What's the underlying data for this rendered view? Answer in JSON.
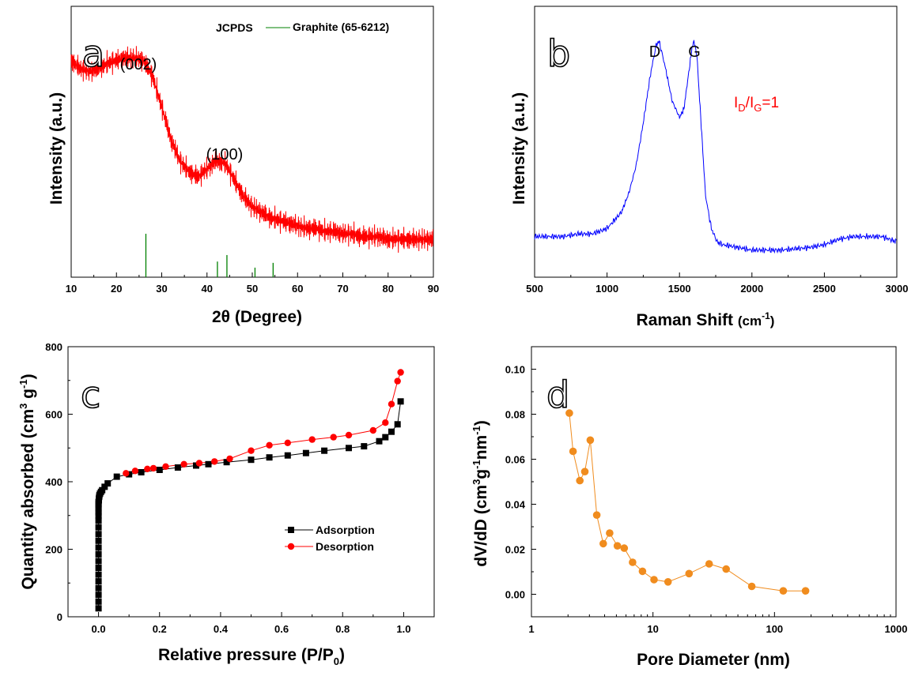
{
  "chart_data": [
    {
      "type": "line",
      "panel_label": "a",
      "xlabel": "2θ (Degree)",
      "ylabel": "Intensity (a.u.)",
      "xlim": [
        10,
        90
      ],
      "xticks": [
        "10",
        "20",
        "30",
        "40",
        "50",
        "60",
        "70",
        "80",
        "90"
      ],
      "yticks_shown": false,
      "series": [
        {
          "color": "#ff0000",
          "x": [
            10,
            12,
            14,
            16,
            18,
            20,
            22,
            24,
            26,
            28,
            30,
            32,
            34,
            36,
            38,
            40,
            42,
            44,
            46,
            48,
            50,
            52,
            54,
            56,
            58,
            60,
            62,
            64,
            66,
            68,
            70,
            72,
            74,
            76,
            78,
            80,
            82,
            84,
            86,
            88,
            90
          ],
          "y": [
            0.8,
            0.77,
            0.76,
            0.77,
            0.79,
            0.8,
            0.81,
            0.81,
            0.8,
            0.74,
            0.63,
            0.51,
            0.43,
            0.39,
            0.37,
            0.4,
            0.43,
            0.42,
            0.36,
            0.3,
            0.26,
            0.24,
            0.22,
            0.21,
            0.2,
            0.19,
            0.18,
            0.18,
            0.17,
            0.17,
            0.16,
            0.16,
            0.15,
            0.15,
            0.15,
            0.14,
            0.14,
            0.14,
            0.14,
            0.14,
            0.14
          ]
        }
      ],
      "reference": {
        "legend_prefix": "JCPDS",
        "name": "Graphite (65-6212)",
        "color": "#008000",
        "lines": [
          {
            "x": 26.5,
            "h": 1.0
          },
          {
            "x": 42.3,
            "h": 0.36
          },
          {
            "x": 44.4,
            "h": 0.51
          },
          {
            "x": 50.6,
            "h": 0.22
          },
          {
            "x": 54.6,
            "h": 0.33
          }
        ]
      },
      "annotations": [
        {
          "text": "(002)",
          "x": 25.5,
          "y": 0.96
        },
        {
          "text": "(100)",
          "x": 43,
          "y": 0.55
        }
      ]
    },
    {
      "type": "line",
      "panel_label": "b",
      "xlabel": "Raman Shift (cm-1)",
      "xlabel_main": "Raman Shift ",
      "xlabel_unit": "(cm",
      "xlabel_sup": "-1",
      "xlabel_close": ")",
      "ylabel": "Intensity (a.u.)",
      "xlim": [
        500,
        3000
      ],
      "xticks": [
        "500",
        "1000",
        "1500",
        "2000",
        "2500",
        "3000"
      ],
      "yticks_shown": false,
      "series": [
        {
          "color": "#0000ff",
          "x": [
            500,
            600,
            700,
            800,
            900,
            1000,
            1100,
            1150,
            1200,
            1250,
            1300,
            1340,
            1360,
            1400,
            1450,
            1500,
            1530,
            1560,
            1590,
            1600,
            1620,
            1650,
            1680,
            1720,
            1760,
            1800,
            1900,
            2000,
            2200,
            2400,
            2500,
            2600,
            2700,
            2800,
            2900,
            3000
          ],
          "y": [
            0.15,
            0.15,
            0.15,
            0.16,
            0.16,
            0.18,
            0.24,
            0.31,
            0.41,
            0.57,
            0.75,
            0.86,
            0.87,
            0.78,
            0.65,
            0.59,
            0.62,
            0.74,
            0.86,
            0.87,
            0.82,
            0.56,
            0.3,
            0.18,
            0.13,
            0.12,
            0.11,
            0.1,
            0.1,
            0.11,
            0.12,
            0.14,
            0.15,
            0.15,
            0.15,
            0.13
          ]
        }
      ],
      "annotations": [
        {
          "text": "D",
          "x": 1340,
          "y": 0.95
        },
        {
          "text": "G",
          "x": 1600,
          "y": 0.95
        }
      ],
      "ratio_label": {
        "I": "I",
        "D": "D",
        "slash": "/",
        "G": "G",
        "value": "=1"
      }
    },
    {
      "type": "line",
      "panel_label": "c",
      "xlabel": "Relative pressure (P/P0)",
      "xlabel_main": "Relative pressure (P/P",
      "xlabel_sub": "0",
      "xlabel_close": ")",
      "ylabel": "Quantity absorbed (cm3 g-1)",
      "ylabel_main": "Quantity absorbed (cm",
      "ylabel_sup1": "3",
      "ylabel_mid": " g",
      "ylabel_sup2": "-1",
      "ylabel_close": ")",
      "xlim": [
        -0.1,
        1.1
      ],
      "ylim": [
        0,
        800
      ],
      "xticks": [
        "0.0",
        "0.2",
        "0.4",
        "0.6",
        "0.8",
        "1.0"
      ],
      "yticks": [
        "0",
        "200",
        "400",
        "600",
        "800"
      ],
      "series": [
        {
          "name": "Adsorption",
          "color": "#000000",
          "marker": "square",
          "x": [
            0.0,
            0.0,
            0.0,
            0.0,
            0.0,
            0.0,
            0.0,
            0.0,
            0.0,
            0.0,
            0.0,
            0.0,
            0.0,
            0.0,
            0.0,
            0.0,
            0.0,
            0.0,
            0.0,
            0.0,
            0.001,
            0.001,
            0.002,
            0.003,
            0.005,
            0.008,
            0.012,
            0.02,
            0.03,
            0.06,
            0.1,
            0.14,
            0.2,
            0.26,
            0.32,
            0.36,
            0.42,
            0.5,
            0.56,
            0.62,
            0.68,
            0.74,
            0.82,
            0.87,
            0.92,
            0.94,
            0.96,
            0.98,
            0.99
          ],
          "y": [
            25,
            45,
            65,
            85,
            105,
            125,
            145,
            165,
            185,
            205,
            225,
            245,
            265,
            285,
            300,
            310,
            320,
            330,
            335,
            340,
            345,
            350,
            355,
            360,
            365,
            370,
            375,
            385,
            395,
            415,
            422,
            428,
            435,
            442,
            448,
            452,
            458,
            465,
            472,
            478,
            485,
            492,
            500,
            505,
            520,
            532,
            548,
            570,
            638
          ]
        },
        {
          "name": "Desorption",
          "color": "#ff0000",
          "marker": "circle",
          "x": [
            0.99,
            0.98,
            0.96,
            0.94,
            0.9,
            0.82,
            0.77,
            0.7,
            0.62,
            0.56,
            0.5,
            0.43,
            0.38,
            0.33,
            0.28,
            0.22,
            0.18,
            0.16,
            0.12,
            0.09
          ],
          "y": [
            724,
            698,
            630,
            575,
            552,
            538,
            532,
            525,
            515,
            508,
            492,
            468,
            460,
            455,
            452,
            445,
            440,
            438,
            432,
            425
          ]
        }
      ]
    },
    {
      "type": "line",
      "panel_label": "d",
      "xlabel": "Pore Diameter (nm)",
      "ylabel": "dV/dD (cm3g-1nm-1)",
      "ylabel_main": "dV/dD (cm",
      "ylabel_sup1": "3",
      "ylabel_mid1": "g",
      "ylabel_sup2": "-1",
      "ylabel_mid2": "nm",
      "ylabel_sup3": "-1",
      "ylabel_close": ")",
      "xscale": "log",
      "xlim": [
        1,
        1000
      ],
      "ylim": [
        -0.01,
        0.11
      ],
      "xticks": [
        "1",
        "10",
        "100",
        "1000"
      ],
      "yticks": [
        "0.00",
        "0.02",
        "0.04",
        "0.06",
        "0.08",
        "0.10"
      ],
      "series": [
        {
          "color": "#f08c1e",
          "marker": "circle",
          "x": [
            2.05,
            2.2,
            2.5,
            2.75,
            3.05,
            3.45,
            3.9,
            4.4,
            5.1,
            5.8,
            6.8,
            8.2,
            10.2,
            13.3,
            19.8,
            29.0,
            40.0,
            65.0,
            118.0,
            180.0
          ],
          "y": [
            0.0805,
            0.0635,
            0.0505,
            0.0545,
            0.0685,
            0.0352,
            0.0225,
            0.0272,
            0.0215,
            0.0205,
            0.0142,
            0.0102,
            0.0065,
            0.0055,
            0.0092,
            0.0135,
            0.0112,
            0.0035,
            0.0015,
            0.0015
          ]
        }
      ]
    }
  ]
}
